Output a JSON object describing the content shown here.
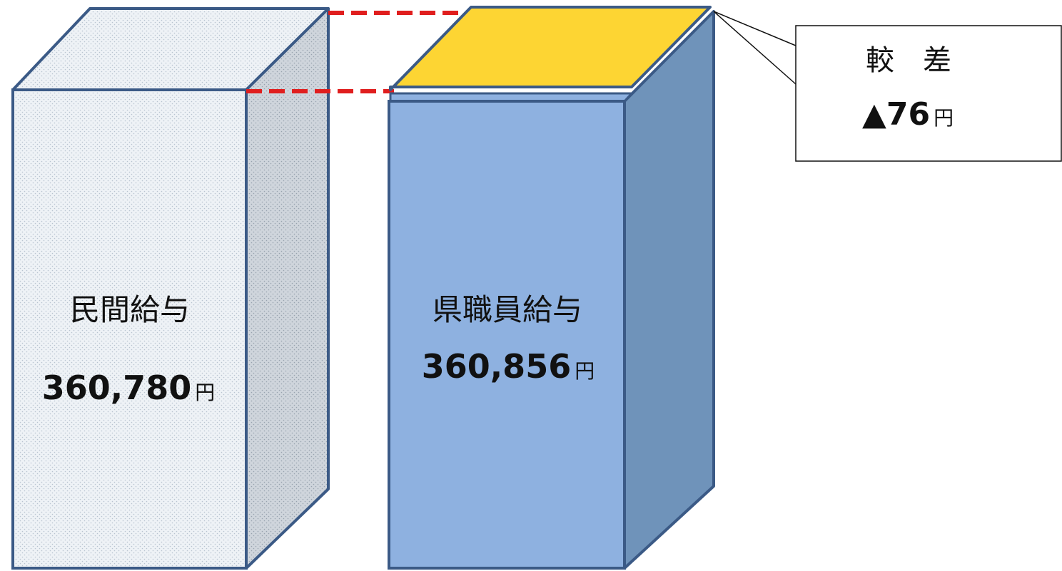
{
  "private_wage": {
    "label": "民間給与",
    "amount": "360,780",
    "unit": "円"
  },
  "pref_staff_wage": {
    "label": "県職員給与",
    "amount": "360,856",
    "unit": "円"
  },
  "difference": {
    "label": "較　差",
    "amount": "▲76",
    "unit": "円"
  },
  "colors": {
    "private_front": "#eef2f6",
    "private_side": "#ced5de",
    "private_top": "#eef2f6",
    "staff_front": "#8eb1e0",
    "staff_side": "#6f93ba",
    "difference_top": "#fdd533",
    "outline": "#3b5a86",
    "dashed_line": "#e01e1e"
  }
}
